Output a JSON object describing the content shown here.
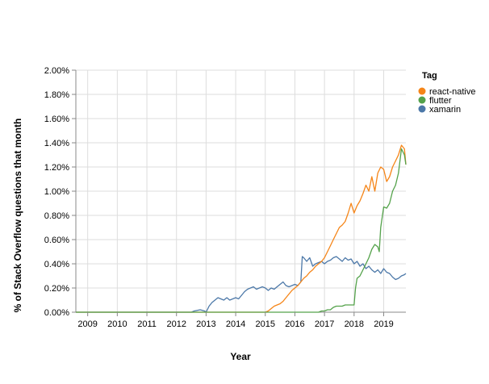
{
  "chart_data": {
    "type": "line",
    "xlabel": "Year",
    "ylabel": "% of Stack Overflow questions that month",
    "x_ticks": [
      "2009",
      "2010",
      "2011",
      "2012",
      "2013",
      "2014",
      "2015",
      "2016",
      "2017",
      "2018",
      "2019"
    ],
    "x_range": [
      2008.6,
      2019.75
    ],
    "ylim": [
      0,
      2.0
    ],
    "y_ticks": [
      "0.00%",
      "0.20%",
      "0.40%",
      "0.60%",
      "0.80%",
      "1.00%",
      "1.20%",
      "1.40%",
      "1.60%",
      "1.80%",
      "2.00%"
    ],
    "grid": true,
    "legend": {
      "title": "Tag",
      "placement": "top-right"
    },
    "series": [
      {
        "name": "react-native",
        "color": "#f58518",
        "x": [
          2008.6,
          2015.0,
          2015.1,
          2015.2,
          2015.3,
          2015.4,
          2015.5,
          2015.6,
          2015.7,
          2015.8,
          2015.9,
          2016.0,
          2016.1,
          2016.2,
          2016.3,
          2016.4,
          2016.5,
          2016.6,
          2016.7,
          2016.8,
          2016.9,
          2017.0,
          2017.1,
          2017.2,
          2017.3,
          2017.4,
          2017.5,
          2017.6,
          2017.7,
          2017.8,
          2017.9,
          2018.0,
          2018.1,
          2018.2,
          2018.3,
          2018.4,
          2018.5,
          2018.6,
          2018.7,
          2018.8,
          2018.9,
          2019.0,
          2019.1,
          2019.2,
          2019.3,
          2019.4,
          2019.5,
          2019.6,
          2019.7,
          2019.75
        ],
        "values": [
          0.0,
          0.0,
          0.01,
          0.03,
          0.05,
          0.06,
          0.07,
          0.09,
          0.12,
          0.15,
          0.18,
          0.2,
          0.22,
          0.25,
          0.28,
          0.3,
          0.33,
          0.35,
          0.38,
          0.4,
          0.42,
          0.45,
          0.5,
          0.55,
          0.6,
          0.65,
          0.7,
          0.72,
          0.75,
          0.82,
          0.9,
          0.82,
          0.88,
          0.92,
          0.98,
          1.05,
          1.0,
          1.12,
          1.0,
          1.15,
          1.2,
          1.18,
          1.08,
          1.12,
          1.2,
          1.25,
          1.3,
          1.38,
          1.35,
          1.22
        ]
      },
      {
        "name": "flutter",
        "color": "#54a24b",
        "x": [
          2008.6,
          2016.8,
          2016.9,
          2017.0,
          2017.1,
          2017.2,
          2017.3,
          2017.4,
          2017.5,
          2017.6,
          2017.7,
          2017.8,
          2017.9,
          2018.0,
          2018.05,
          2018.1,
          2018.2,
          2018.3,
          2018.4,
          2018.5,
          2018.6,
          2018.7,
          2018.8,
          2018.85,
          2018.9,
          2019.0,
          2019.1,
          2019.2,
          2019.3,
          2019.4,
          2019.5,
          2019.6,
          2019.7,
          2019.75
        ],
        "values": [
          0.0,
          0.0,
          0.01,
          0.01,
          0.02,
          0.02,
          0.04,
          0.05,
          0.05,
          0.05,
          0.06,
          0.06,
          0.06,
          0.06,
          0.2,
          0.28,
          0.3,
          0.35,
          0.4,
          0.45,
          0.52,
          0.56,
          0.54,
          0.5,
          0.7,
          0.87,
          0.86,
          0.9,
          1.0,
          1.05,
          1.15,
          1.35,
          1.3,
          1.22
        ]
      },
      {
        "name": "xamarin",
        "color": "#4c78a8",
        "x": [
          2008.6,
          2012.5,
          2012.6,
          2012.8,
          2012.95,
          2013.0,
          2013.1,
          2013.2,
          2013.3,
          2013.4,
          2013.5,
          2013.6,
          2013.7,
          2013.8,
          2013.9,
          2014.0,
          2014.1,
          2014.2,
          2014.3,
          2014.4,
          2014.5,
          2014.6,
          2014.7,
          2014.8,
          2014.9,
          2015.0,
          2015.1,
          2015.2,
          2015.3,
          2015.4,
          2015.5,
          2015.6,
          2015.7,
          2015.8,
          2015.9,
          2016.0,
          2016.1,
          2016.2,
          2016.25,
          2016.3,
          2016.4,
          2016.5,
          2016.6,
          2016.7,
          2016.8,
          2016.9,
          2017.0,
          2017.1,
          2017.2,
          2017.3,
          2017.4,
          2017.5,
          2017.6,
          2017.7,
          2017.8,
          2017.9,
          2018.0,
          2018.1,
          2018.2,
          2018.3,
          2018.4,
          2018.5,
          2018.6,
          2018.7,
          2018.8,
          2018.9,
          2019.0,
          2019.1,
          2019.2,
          2019.3,
          2019.4,
          2019.5,
          2019.6,
          2019.7,
          2019.75
        ],
        "values": [
          0.0,
          0.0,
          0.01,
          0.02,
          0.01,
          0.0,
          0.05,
          0.08,
          0.1,
          0.12,
          0.11,
          0.1,
          0.12,
          0.1,
          0.11,
          0.12,
          0.11,
          0.14,
          0.17,
          0.19,
          0.2,
          0.21,
          0.19,
          0.2,
          0.21,
          0.2,
          0.18,
          0.2,
          0.19,
          0.21,
          0.23,
          0.25,
          0.22,
          0.21,
          0.22,
          0.23,
          0.22,
          0.25,
          0.46,
          0.45,
          0.42,
          0.45,
          0.38,
          0.4,
          0.41,
          0.42,
          0.4,
          0.42,
          0.43,
          0.45,
          0.46,
          0.44,
          0.42,
          0.45,
          0.43,
          0.44,
          0.4,
          0.42,
          0.38,
          0.4,
          0.36,
          0.38,
          0.35,
          0.33,
          0.35,
          0.32,
          0.36,
          0.33,
          0.32,
          0.29,
          0.27,
          0.28,
          0.3,
          0.31,
          0.32
        ]
      }
    ]
  }
}
